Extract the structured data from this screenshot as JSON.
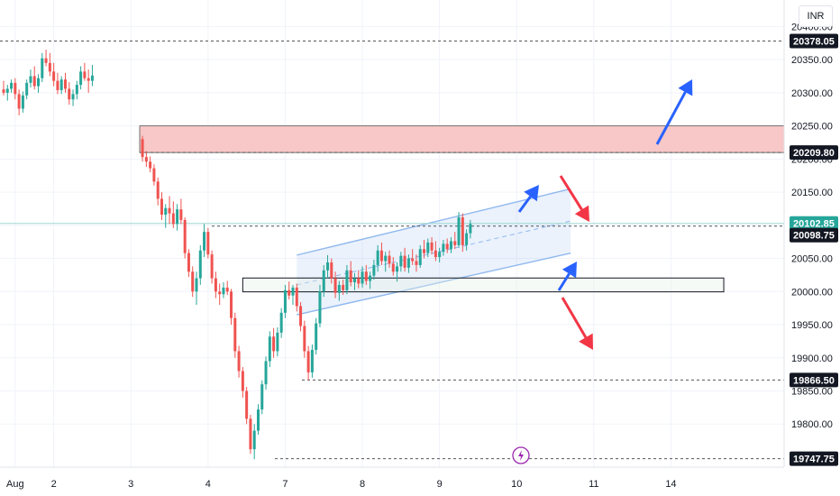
{
  "currency_label": "INR",
  "chart_data": {
    "type": "candlestick",
    "ylim": [
      19735,
      20440
    ],
    "price_ticks": [
      "20400.00",
      "20350.00",
      "20300.00",
      "20250.00",
      "20200.00",
      "20150.00",
      "20100.00",
      "20050.00",
      "20000.00",
      "19950.00",
      "19900.00",
      "19850.00",
      "19800.00"
    ],
    "date_ticks": [
      {
        "label": "Aug",
        "bar": 3
      },
      {
        "label": "2",
        "bar": 13
      },
      {
        "label": "3",
        "bar": 33
      },
      {
        "label": "4",
        "bar": 53
      },
      {
        "label": "7",
        "bar": 73
      },
      {
        "label": "8",
        "bar": 93
      },
      {
        "label": "9",
        "bar": 113
      },
      {
        "label": "10",
        "bar": 133
      },
      {
        "label": "11",
        "bar": 153
      },
      {
        "label": "14",
        "bar": 173
      }
    ],
    "price_levels": [
      {
        "label": "20378.05",
        "value": 20378.05,
        "style": "dark"
      },
      {
        "label": "20209.80",
        "value": 20209.8,
        "style": "dark"
      },
      {
        "label": "20102.85",
        "value": 20102.85,
        "style": "green"
      },
      {
        "label": "20098.75",
        "value": 20098.75,
        "style": "dark"
      },
      {
        "label": "19866.50",
        "value": 19866.5,
        "style": "dark"
      },
      {
        "label": "19747.75",
        "value": 19747.75,
        "style": "dark"
      }
    ],
    "supply_zone": [
      20209.8,
      20250
    ],
    "support_box": {
      "from_bar": 62,
      "to_bar": 168,
      "low": 20005,
      "high": 20015
    },
    "channel": {
      "from_bar": 76,
      "to_bar": 147,
      "upper": [
        20055,
        20155
      ],
      "lower": [
        19965,
        20058
      ]
    },
    "colors": {
      "up": "#26a69a",
      "down": "#ef5350",
      "zone": "#f8c7c7",
      "channel": "#90b8ee",
      "arrow_up": "#2962ff",
      "arrow_down": "#f23645",
      "current": "#26a69a"
    },
    "candles": [
      [
        20305,
        20318,
        20296,
        20300
      ],
      [
        20300,
        20312,
        20288,
        20306
      ],
      [
        20306,
        20320,
        20300,
        20315
      ],
      [
        20315,
        20322,
        20290,
        20298
      ],
      [
        20298,
        20305,
        20266,
        20276
      ],
      [
        20276,
        20302,
        20270,
        20296
      ],
      [
        20296,
        20320,
        20290,
        20315
      ],
      [
        20315,
        20335,
        20308,
        20325
      ],
      [
        20325,
        20340,
        20305,
        20310
      ],
      [
        20310,
        20328,
        20300,
        20322
      ],
      [
        20322,
        20360,
        20316,
        20352
      ],
      [
        20352,
        20365,
        20340,
        20345
      ],
      [
        20345,
        20360,
        20325,
        20332
      ],
      [
        20332,
        20345,
        20310,
        20318
      ],
      [
        20318,
        20330,
        20298,
        20304
      ],
      [
        20304,
        20325,
        20298,
        20320
      ],
      [
        20320,
        20330,
        20300,
        20306
      ],
      [
        20306,
        20316,
        20282,
        20290
      ],
      [
        20290,
        20305,
        20280,
        20298
      ],
      [
        20298,
        20318,
        20290,
        20312
      ],
      [
        20312,
        20340,
        20305,
        20332
      ],
      [
        20332,
        20345,
        20318,
        20322
      ],
      [
        20322,
        20335,
        20300,
        20318
      ],
      [
        20318,
        20342,
        20310,
        20326
      ],
      [
        20230,
        20235,
        20196,
        20203
      ],
      [
        20203,
        20212,
        20188,
        20196
      ],
      [
        20196,
        20204,
        20180,
        20186
      ],
      [
        20186,
        20192,
        20160,
        20166
      ],
      [
        20166,
        20172,
        20130,
        20140
      ],
      [
        20140,
        20150,
        20108,
        20116
      ],
      [
        20116,
        20132,
        20096,
        20126
      ],
      [
        20126,
        20144,
        20102,
        20118
      ],
      [
        20118,
        20136,
        20096,
        20102
      ],
      [
        20102,
        20132,
        20092,
        20124
      ],
      [
        20124,
        20140,
        20102,
        20108
      ],
      [
        20108,
        20112,
        20050,
        20058
      ],
      [
        20058,
        20064,
        20022,
        20030
      ],
      [
        20030,
        20038,
        19992,
        20000
      ],
      [
        20000,
        20030,
        19980,
        20020
      ],
      [
        20020,
        20070,
        20010,
        20062
      ],
      [
        20062,
        20102,
        20052,
        20090
      ],
      [
        20090,
        20096,
        20050,
        20056
      ],
      [
        20056,
        20062,
        20012,
        20020
      ],
      [
        20020,
        20030,
        19990,
        20000
      ],
      [
        20000,
        20012,
        19980,
        19996
      ],
      [
        19996,
        20014,
        19990,
        20006
      ],
      [
        20006,
        20016,
        19995,
        20000
      ],
      [
        20000,
        20004,
        19950,
        19960
      ],
      [
        19960,
        19968,
        19900,
        19910
      ],
      [
        19910,
        19918,
        19870,
        19880
      ],
      [
        19880,
        19886,
        19840,
        19850
      ],
      [
        19850,
        19856,
        19800,
        19808
      ],
      [
        19808,
        19814,
        19755,
        19762
      ],
      [
        19762,
        19800,
        19747,
        19790
      ],
      [
        19790,
        19830,
        19784,
        19822
      ],
      [
        19822,
        19866,
        19815,
        19860
      ],
      [
        19860,
        19902,
        19852,
        19895
      ],
      [
        19895,
        19940,
        19886,
        19932
      ],
      [
        19932,
        19945,
        19900,
        19910
      ],
      [
        19910,
        19946,
        19902,
        19938
      ],
      [
        19938,
        19975,
        19930,
        19968
      ],
      [
        19968,
        20010,
        19960,
        20002
      ],
      [
        20002,
        20015,
        19988,
        19994
      ],
      [
        19994,
        20010,
        19980,
        20006
      ],
      [
        20006,
        20012,
        19970,
        19978
      ],
      [
        19978,
        19984,
        19940,
        19948
      ],
      [
        19948,
        19956,
        19900,
        19910
      ],
      [
        19910,
        19918,
        19866,
        19878
      ],
      [
        19878,
        19920,
        19870,
        19912
      ],
      [
        19912,
        19960,
        19905,
        19952
      ],
      [
        19952,
        20010,
        19946,
        20000
      ],
      [
        20000,
        20040,
        19992,
        20032
      ],
      [
        20032,
        20055,
        20020,
        20044
      ],
      [
        20044,
        20050,
        20012,
        20020
      ],
      [
        20020,
        20030,
        19990,
        19998
      ],
      [
        19998,
        20016,
        19986,
        20010
      ],
      [
        20010,
        20018,
        19995,
        20002
      ],
      [
        20002,
        20040,
        19996,
        20032
      ],
      [
        20032,
        20046,
        20008,
        20014
      ],
      [
        20014,
        20028,
        20002,
        20020
      ],
      [
        20020,
        20032,
        20005,
        20012
      ],
      [
        20012,
        20038,
        20006,
        20030
      ],
      [
        20030,
        20040,
        20010,
        20016
      ],
      [
        20016,
        20030,
        20004,
        20024
      ],
      [
        20024,
        20048,
        20018,
        20040
      ],
      [
        20040,
        20070,
        20030,
        20062
      ],
      [
        20062,
        20074,
        20040,
        20046
      ],
      [
        20046,
        20060,
        20030,
        20054
      ],
      [
        20054,
        20062,
        20036,
        20042
      ],
      [
        20042,
        20052,
        20024,
        20030
      ],
      [
        20030,
        20044,
        20015,
        20038
      ],
      [
        20038,
        20060,
        20030,
        20054
      ],
      [
        20054,
        20066,
        20030,
        20036
      ],
      [
        20036,
        20056,
        20028,
        20050
      ],
      [
        20050,
        20064,
        20040,
        20046
      ],
      [
        20046,
        20056,
        20030,
        20040
      ],
      [
        20040,
        20070,
        20036,
        20064
      ],
      [
        20064,
        20078,
        20050,
        20058
      ],
      [
        20058,
        20080,
        20052,
        20074
      ],
      [
        20074,
        20082,
        20056,
        20062
      ],
      [
        20062,
        20076,
        20046,
        20052
      ],
      [
        20052,
        20066,
        20044,
        20060
      ],
      [
        20060,
        20078,
        20054,
        20072
      ],
      [
        20072,
        20080,
        20058,
        20064
      ],
      [
        20064,
        20082,
        20058,
        20076
      ],
      [
        20076,
        20090,
        20064,
        20070
      ],
      [
        20070,
        20120,
        20066,
        20112
      ],
      [
        20112,
        20118,
        20060,
        20070
      ],
      [
        20070,
        20094,
        20062,
        20088
      ],
      [
        20088,
        20108,
        20080,
        20102
      ]
    ]
  }
}
